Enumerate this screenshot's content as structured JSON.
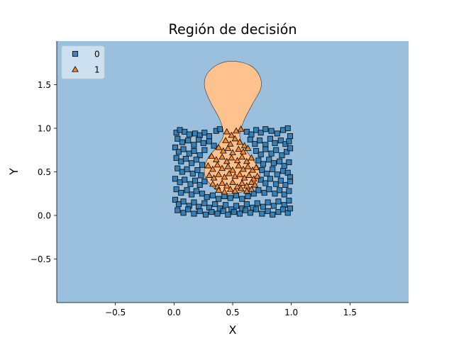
{
  "chart_data": {
    "type": "scatter",
    "title": "Región de decisión",
    "xlabel": "X",
    "ylabel": "Y",
    "xlim": [
      -1.0,
      2.0
    ],
    "ylim": [
      -1.0,
      2.0
    ],
    "xticks": [
      -0.5,
      0.0,
      0.5,
      1.0,
      1.5
    ],
    "xtick_labels": [
      "−0.5",
      "0.0",
      "0.5",
      "1.0",
      "1.5"
    ],
    "yticks": [
      -0.5,
      0.0,
      0.5,
      1.0,
      1.5
    ],
    "ytick_labels": [
      "−0.5",
      "0.0",
      "0.5",
      "1.0",
      "1.5"
    ],
    "grid": false,
    "legend_position": "top-left",
    "background_region_color": "#9bc0de",
    "class1_region_color": "#ffc28f",
    "decision_region_class1": [
      [
        0.33,
        0.33
      ],
      [
        0.4,
        0.26
      ],
      [
        0.5,
        0.25
      ],
      [
        0.6,
        0.28
      ],
      [
        0.7,
        0.35
      ],
      [
        0.73,
        0.46
      ],
      [
        0.72,
        0.55
      ],
      [
        0.66,
        0.66
      ],
      [
        0.6,
        0.78
      ],
      [
        0.56,
        0.92
      ],
      [
        0.6,
        1.1
      ],
      [
        0.67,
        1.28
      ],
      [
        0.74,
        1.46
      ],
      [
        0.73,
        1.6
      ],
      [
        0.65,
        1.72
      ],
      [
        0.5,
        1.77
      ],
      [
        0.37,
        1.73
      ],
      [
        0.28,
        1.62
      ],
      [
        0.26,
        1.48
      ],
      [
        0.31,
        1.3
      ],
      [
        0.39,
        1.1
      ],
      [
        0.42,
        0.92
      ],
      [
        0.36,
        0.78
      ],
      [
        0.29,
        0.66
      ],
      [
        0.26,
        0.55
      ],
      [
        0.27,
        0.43
      ]
    ],
    "series": [
      {
        "name": "0",
        "marker": "square",
        "color": "#1f77b4",
        "points": [
          [
            0.02,
            0.95
          ],
          [
            0.05,
            0.98
          ],
          [
            0.09,
            0.96
          ],
          [
            0.13,
            0.93
          ],
          [
            0.18,
            0.94
          ],
          [
            0.22,
            0.92
          ],
          [
            0.26,
            0.95
          ],
          [
            0.3,
            0.91
          ],
          [
            0.36,
            0.97
          ],
          [
            0.39,
            0.99
          ],
          [
            0.62,
            0.96
          ],
          [
            0.66,
            0.93
          ],
          [
            0.7,
            0.98
          ],
          [
            0.74,
            0.95
          ],
          [
            0.78,
            0.99
          ],
          [
            0.83,
            0.97
          ],
          [
            0.88,
            0.94
          ],
          [
            0.93,
            0.98
          ],
          [
            0.97,
            1.0
          ],
          [
            0.99,
            0.91
          ],
          [
            0.03,
            0.88
          ],
          [
            0.07,
            0.84
          ],
          [
            0.12,
            0.86
          ],
          [
            0.17,
            0.81
          ],
          [
            0.21,
            0.87
          ],
          [
            0.25,
            0.83
          ],
          [
            0.3,
            0.85
          ],
          [
            0.34,
            0.8
          ],
          [
            0.65,
            0.87
          ],
          [
            0.69,
            0.82
          ],
          [
            0.73,
            0.86
          ],
          [
            0.78,
            0.81
          ],
          [
            0.82,
            0.88
          ],
          [
            0.86,
            0.83
          ],
          [
            0.91,
            0.86
          ],
          [
            0.95,
            0.82
          ],
          [
            0.98,
            0.85
          ],
          [
            0.01,
            0.78
          ],
          [
            0.04,
            0.73
          ],
          [
            0.08,
            0.76
          ],
          [
            0.13,
            0.71
          ],
          [
            0.17,
            0.74
          ],
          [
            0.22,
            0.69
          ],
          [
            0.26,
            0.75
          ],
          [
            0.7,
            0.74
          ],
          [
            0.74,
            0.7
          ],
          [
            0.78,
            0.76
          ],
          [
            0.83,
            0.71
          ],
          [
            0.87,
            0.75
          ],
          [
            0.92,
            0.69
          ],
          [
            0.96,
            0.73
          ],
          [
            0.99,
            0.77
          ],
          [
            0.02,
            0.66
          ],
          [
            0.06,
            0.62
          ],
          [
            0.1,
            0.65
          ],
          [
            0.15,
            0.6
          ],
          [
            0.19,
            0.64
          ],
          [
            0.24,
            0.58
          ],
          [
            0.72,
            0.63
          ],
          [
            0.76,
            0.59
          ],
          [
            0.81,
            0.64
          ],
          [
            0.85,
            0.6
          ],
          [
            0.9,
            0.62
          ],
          [
            0.94,
            0.57
          ],
          [
            0.98,
            0.61
          ],
          [
            0.03,
            0.54
          ],
          [
            0.07,
            0.5
          ],
          [
            0.11,
            0.53
          ],
          [
            0.16,
            0.48
          ],
          [
            0.2,
            0.52
          ],
          [
            0.23,
            0.46
          ],
          [
            0.75,
            0.52
          ],
          [
            0.79,
            0.48
          ],
          [
            0.84,
            0.53
          ],
          [
            0.88,
            0.47
          ],
          [
            0.93,
            0.51
          ],
          [
            0.97,
            0.49
          ],
          [
            0.99,
            0.44
          ],
          [
            0.01,
            0.42
          ],
          [
            0.05,
            0.38
          ],
          [
            0.09,
            0.41
          ],
          [
            0.14,
            0.36
          ],
          [
            0.18,
            0.4
          ],
          [
            0.22,
            0.35
          ],
          [
            0.26,
            0.39
          ],
          [
            0.74,
            0.41
          ],
          [
            0.78,
            0.37
          ],
          [
            0.82,
            0.42
          ],
          [
            0.87,
            0.36
          ],
          [
            0.91,
            0.4
          ],
          [
            0.95,
            0.35
          ],
          [
            0.99,
            0.39
          ],
          [
            0.02,
            0.3
          ],
          [
            0.06,
            0.26
          ],
          [
            0.11,
            0.29
          ],
          [
            0.15,
            0.24
          ],
          [
            0.19,
            0.28
          ],
          [
            0.24,
            0.25
          ],
          [
            0.28,
            0.21
          ],
          [
            0.33,
            0.23
          ],
          [
            0.38,
            0.19
          ],
          [
            0.43,
            0.22
          ],
          [
            0.48,
            0.2
          ],
          [
            0.53,
            0.23
          ],
          [
            0.58,
            0.19
          ],
          [
            0.63,
            0.22
          ],
          [
            0.68,
            0.25
          ],
          [
            0.72,
            0.29
          ],
          [
            0.77,
            0.26
          ],
          [
            0.81,
            0.3
          ],
          [
            0.86,
            0.25
          ],
          [
            0.9,
            0.29
          ],
          [
            0.94,
            0.24
          ],
          [
            0.98,
            0.28
          ],
          [
            0.01,
            0.18
          ],
          [
            0.04,
            0.13
          ],
          [
            0.08,
            0.16
          ],
          [
            0.13,
            0.11
          ],
          [
            0.17,
            0.15
          ],
          [
            0.21,
            0.1
          ],
          [
            0.26,
            0.14
          ],
          [
            0.3,
            0.09
          ],
          [
            0.35,
            0.13
          ],
          [
            0.39,
            0.08
          ],
          [
            0.44,
            0.12
          ],
          [
            0.49,
            0.07
          ],
          [
            0.53,
            0.11
          ],
          [
            0.58,
            0.08
          ],
          [
            0.62,
            0.13
          ],
          [
            0.67,
            0.09
          ],
          [
            0.71,
            0.14
          ],
          [
            0.76,
            0.1
          ],
          [
            0.8,
            0.15
          ],
          [
            0.85,
            0.11
          ],
          [
            0.89,
            0.16
          ],
          [
            0.94,
            0.12
          ],
          [
            0.98,
            0.17
          ],
          [
            0.03,
            0.06
          ],
          [
            0.08,
            0.03
          ],
          [
            0.12,
            0.07
          ],
          [
            0.17,
            0.02
          ],
          [
            0.22,
            0.05
          ],
          [
            0.27,
            0.01
          ],
          [
            0.32,
            0.04
          ],
          [
            0.37,
            0.02
          ],
          [
            0.42,
            0.05
          ],
          [
            0.46,
            0.01
          ],
          [
            0.51,
            0.04
          ],
          [
            0.56,
            0.02
          ],
          [
            0.61,
            0.06
          ],
          [
            0.65,
            0.03
          ],
          [
            0.7,
            0.07
          ],
          [
            0.75,
            0.02
          ],
          [
            0.8,
            0.05
          ],
          [
            0.84,
            0.01
          ],
          [
            0.89,
            0.04
          ],
          [
            0.93,
            0.07
          ],
          [
            0.97,
            0.03
          ],
          [
            0.99,
            0.08
          ]
        ]
      },
      {
        "name": "1",
        "marker": "triangle",
        "color": "#ff7f0e",
        "points": [
          [
            0.45,
            0.96
          ],
          [
            0.49,
            0.92
          ],
          [
            0.53,
            0.97
          ],
          [
            0.57,
            0.99
          ],
          [
            0.44,
            0.86
          ],
          [
            0.48,
            0.82
          ],
          [
            0.52,
            0.88
          ],
          [
            0.56,
            0.84
          ],
          [
            0.6,
            0.8
          ],
          [
            0.38,
            0.78
          ],
          [
            0.42,
            0.74
          ],
          [
            0.46,
            0.77
          ],
          [
            0.5,
            0.72
          ],
          [
            0.55,
            0.76
          ],
          [
            0.59,
            0.73
          ],
          [
            0.63,
            0.77
          ],
          [
            0.32,
            0.68
          ],
          [
            0.36,
            0.64
          ],
          [
            0.41,
            0.67
          ],
          [
            0.45,
            0.62
          ],
          [
            0.49,
            0.66
          ],
          [
            0.54,
            0.63
          ],
          [
            0.58,
            0.67
          ],
          [
            0.62,
            0.62
          ],
          [
            0.66,
            0.66
          ],
          [
            0.29,
            0.57
          ],
          [
            0.33,
            0.53
          ],
          [
            0.37,
            0.58
          ],
          [
            0.41,
            0.54
          ],
          [
            0.46,
            0.56
          ],
          [
            0.5,
            0.52
          ],
          [
            0.55,
            0.57
          ],
          [
            0.59,
            0.53
          ],
          [
            0.63,
            0.56
          ],
          [
            0.67,
            0.52
          ],
          [
            0.7,
            0.55
          ],
          [
            0.3,
            0.46
          ],
          [
            0.34,
            0.43
          ],
          [
            0.38,
            0.47
          ],
          [
            0.43,
            0.44
          ],
          [
            0.47,
            0.48
          ],
          [
            0.52,
            0.45
          ],
          [
            0.56,
            0.47
          ],
          [
            0.6,
            0.43
          ],
          [
            0.64,
            0.46
          ],
          [
            0.68,
            0.42
          ],
          [
            0.71,
            0.45
          ],
          [
            0.33,
            0.36
          ],
          [
            0.37,
            0.33
          ],
          [
            0.41,
            0.37
          ],
          [
            0.45,
            0.34
          ],
          [
            0.5,
            0.38
          ],
          [
            0.54,
            0.33
          ],
          [
            0.58,
            0.37
          ],
          [
            0.62,
            0.34
          ],
          [
            0.66,
            0.38
          ],
          [
            0.69,
            0.35
          ],
          [
            0.38,
            0.29
          ],
          [
            0.43,
            0.27
          ],
          [
            0.48,
            0.3
          ],
          [
            0.52,
            0.28
          ],
          [
            0.57,
            0.31
          ],
          [
            0.62,
            0.28
          ],
          [
            0.66,
            0.3
          ]
        ]
      }
    ]
  }
}
